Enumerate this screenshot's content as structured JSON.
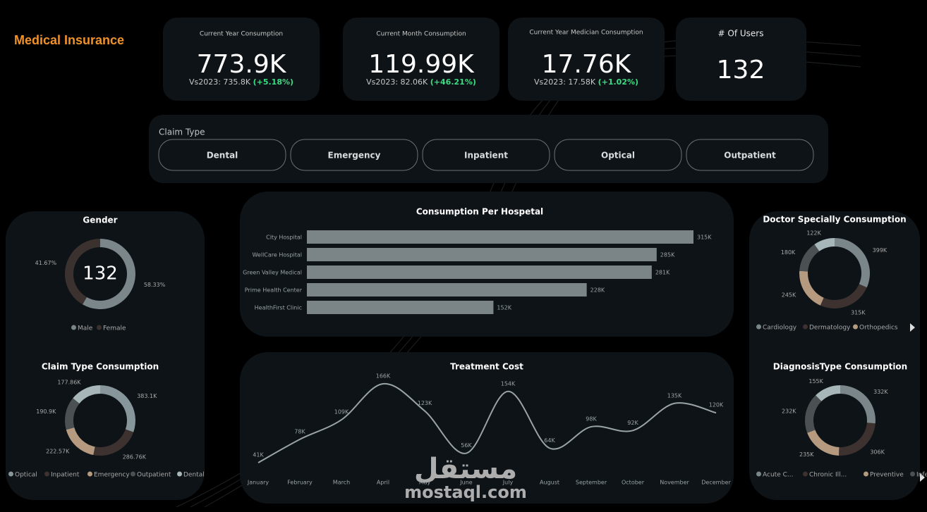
{
  "header": {
    "title": "Medical Insurance"
  },
  "kpis": [
    {
      "label": "Current Year Consumption",
      "value": "773.9K",
      "compare": "Vs2023: 735.8K",
      "change": "(+5.18%)"
    },
    {
      "label": "Current Month Consumption",
      "value": "119.99K",
      "compare": "Vs2023: 82.06K",
      "change": "(+46.21%)"
    },
    {
      "label": "Current Year Medician Consumption",
      "value": "17.76K",
      "compare": "Vs2023: 17.58K",
      "change": "(+1.02%)"
    }
  ],
  "users": {
    "label": "# Of Users",
    "value": "132"
  },
  "slicer": {
    "title": "Claim Type",
    "options": [
      "Dental",
      "Emergency",
      "Inpatient",
      "Optical",
      "Outpatient"
    ]
  },
  "chart_data": [
    {
      "type": "donut",
      "title": "Gender",
      "center_text": "132",
      "categories": [
        "Male",
        "Female"
      ],
      "values": [
        58.33,
        41.67
      ],
      "value_labels": [
        "58.33%",
        "41.67%"
      ],
      "colors": [
        "#7a8689",
        "#3b312e"
      ]
    },
    {
      "type": "donut",
      "title": "Claim Type Consumption",
      "categories": [
        "Optical",
        "Inpatient",
        "Emergency",
        "Outpatient",
        "Dental"
      ],
      "values": [
        383100,
        286760,
        222570,
        190900,
        177860
      ],
      "value_labels": [
        "383.1K",
        "286.76K",
        "222.57K",
        "190.9K",
        "177.86K"
      ],
      "colors": [
        "#87969a",
        "#3d3230",
        "#b69a7f",
        "#4b5153",
        "#a7b6b9"
      ]
    },
    {
      "type": "bar",
      "title": "Consumption Per Hospetal",
      "categories": [
        "City Hospital",
        "WellCare Hospital",
        "Green Valley Medical",
        "Prime Health Center",
        "HealthFirst Clinic"
      ],
      "values": [
        315000,
        285000,
        281000,
        228000,
        152000
      ],
      "value_labels": [
        "315K",
        "285K",
        "281K",
        "228K",
        "152K"
      ],
      "color": "#7b8588"
    },
    {
      "type": "line",
      "title": "Treatment Cost",
      "categories": [
        "January",
        "February",
        "March",
        "April",
        "May",
        "June",
        "July",
        "August",
        "September",
        "October",
        "November",
        "December"
      ],
      "values": [
        41000,
        78000,
        109000,
        166000,
        123000,
        56000,
        154000,
        64000,
        98000,
        92000,
        135000,
        120000
      ],
      "value_labels": [
        "41K",
        "78K",
        "109K",
        "166K",
        "123K",
        "56K",
        "154K",
        "64K",
        "98K",
        "92K",
        "135K",
        "120K"
      ],
      "color": "#9aa4a6"
    },
    {
      "type": "donut",
      "title": "Doctor Specially Consumption",
      "categories": [
        "Cardiology",
        "Dermatology",
        "Orthopedics",
        null,
        null
      ],
      "values": [
        399000,
        315000,
        245000,
        180000,
        122000
      ],
      "value_labels": [
        "399K",
        "315K",
        "245K",
        "180K",
        "122K"
      ],
      "colors": [
        "#7a8689",
        "#3d3230",
        "#b69a7f",
        "#4b5153",
        "#a7b6b9"
      ]
    },
    {
      "type": "donut",
      "title": "DiagnosisType Consumption",
      "categories": [
        "Acute C...",
        "Chronic Ill...",
        "Preventive",
        "Infection",
        null
      ],
      "values": [
        332000,
        306000,
        235000,
        232000,
        155000
      ],
      "value_labels": [
        "332K",
        "306K",
        "235K",
        "232K",
        "155K"
      ],
      "colors": [
        "#7a8689",
        "#3d3230",
        "#b69a7f",
        "#4b5153",
        "#a7b6b9"
      ]
    }
  ],
  "watermark": {
    "arabic": "مستقل",
    "latin": "mostaql.com"
  }
}
